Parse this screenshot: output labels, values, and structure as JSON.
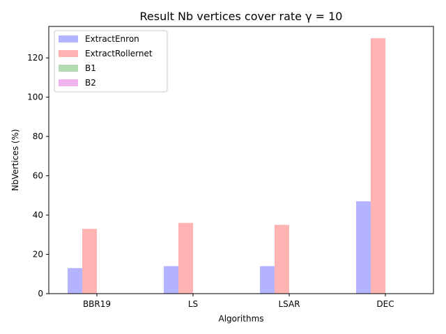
{
  "chart_data": {
    "type": "bar",
    "title": "Result Nb vertices cover rate γ = 10",
    "xlabel": "Algorithms",
    "ylabel": "NbVertices (%)",
    "categories": [
      "BBR19",
      "LS",
      "LSAR",
      "DEC"
    ],
    "ylim": [
      0,
      136
    ],
    "yticks": [
      0,
      20,
      40,
      60,
      80,
      100,
      120
    ],
    "legend_position": "top-left",
    "grid": false,
    "series": [
      {
        "name": "ExtractEnron",
        "color": "#b3b3ff",
        "values": [
          13,
          14,
          14,
          47
        ]
      },
      {
        "name": "ExtractRollernet",
        "color": "#ffb3b3",
        "values": [
          33,
          36,
          35,
          130
        ]
      },
      {
        "name": "B1",
        "color": "#b3d9b3",
        "values": [
          0,
          0,
          0,
          0
        ]
      },
      {
        "name": "B2",
        "color": "#f0b3f0",
        "values": [
          0,
          0,
          0,
          0
        ]
      }
    ]
  }
}
